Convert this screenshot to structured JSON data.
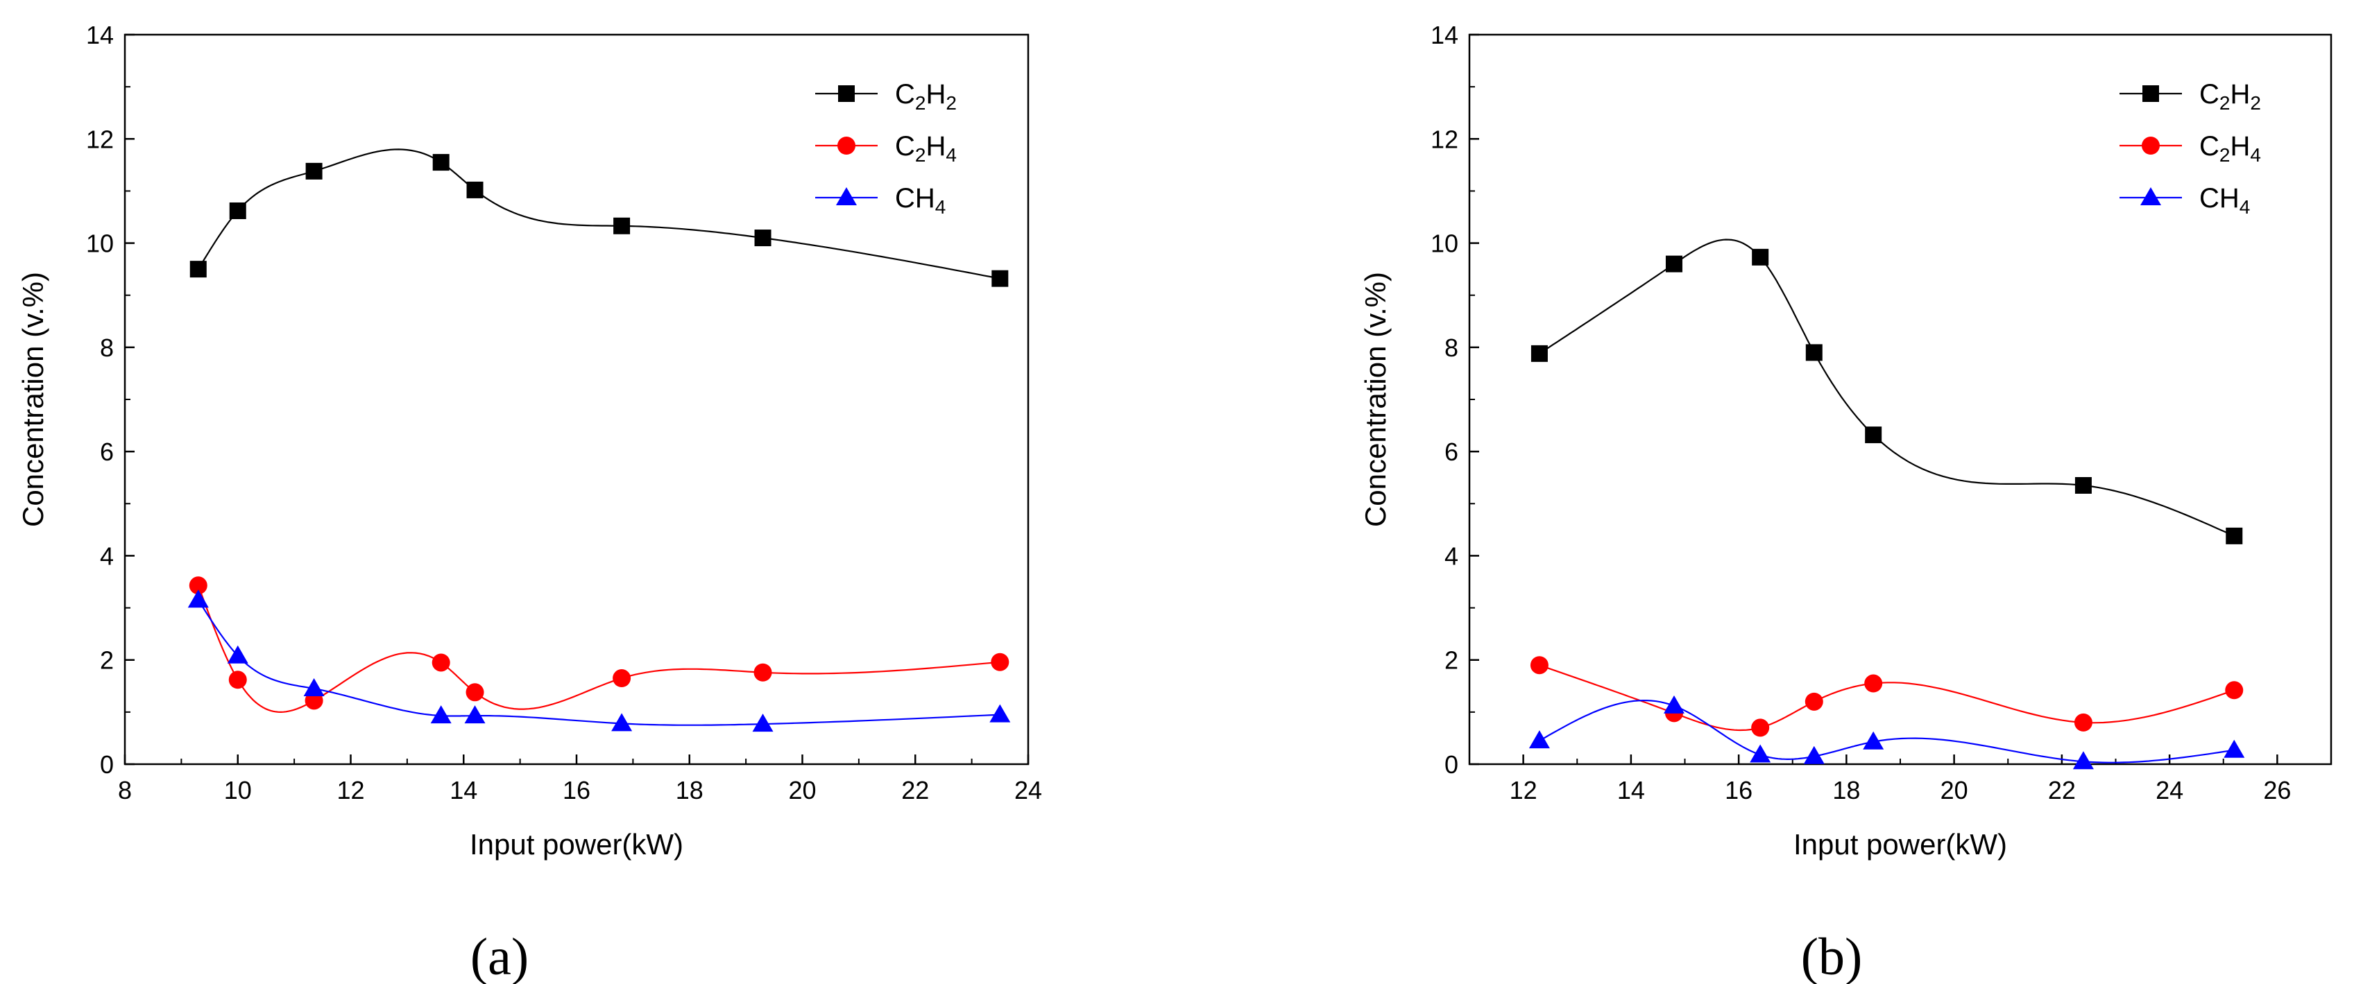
{
  "chart_data": [
    {
      "type": "line",
      "panel_label": "a",
      "xlabel": "Input power(kW)",
      "ylabel": "Concentration (v.%)",
      "xlim": [
        8,
        24
      ],
      "ylim": [
        0,
        14
      ],
      "xticks": [
        8,
        10,
        12,
        14,
        16,
        18,
        20,
        22,
        24
      ],
      "yticks": [
        0,
        2,
        4,
        6,
        8,
        10,
        12,
        14
      ],
      "legend_position": "top-right",
      "series": [
        {
          "name": "C2H2",
          "label_main": "C",
          "label_sub1": "2",
          "label_mid": "H",
          "label_sub2": "2",
          "color": "#000000",
          "marker": "square",
          "x": [
            9.3,
            10.0,
            11.35,
            13.6,
            14.2,
            16.8,
            19.3,
            23.5
          ],
          "y": [
            9.5,
            10.62,
            11.38,
            11.55,
            11.02,
            10.33,
            10.1,
            9.32
          ]
        },
        {
          "name": "C2H4",
          "label_main": "C",
          "label_sub1": "2",
          "label_mid": "H",
          "label_sub2": "4",
          "color": "#ff0000",
          "marker": "circle",
          "x": [
            9.3,
            10.0,
            11.35,
            13.6,
            14.2,
            16.8,
            19.3,
            23.5
          ],
          "y": [
            3.43,
            1.62,
            1.22,
            1.95,
            1.38,
            1.65,
            1.76,
            1.96
          ]
        },
        {
          "name": "CH4",
          "label_main": "CH",
          "label_sub1": "4",
          "label_mid": "",
          "label_sub2": "",
          "color": "#0000ff",
          "marker": "triangle",
          "x": [
            9.3,
            10.0,
            11.35,
            13.6,
            14.2,
            16.8,
            19.3,
            23.5
          ],
          "y": [
            3.15,
            2.08,
            1.45,
            0.93,
            0.93,
            0.78,
            0.77,
            0.95
          ]
        }
      ]
    },
    {
      "type": "line",
      "panel_label": "b",
      "xlabel": "Input power(kW)",
      "ylabel": "Concentration (v.%)",
      "xlim": [
        11,
        27
      ],
      "ylim": [
        0,
        14
      ],
      "xticks": [
        12,
        14,
        16,
        18,
        20,
        22,
        24,
        26
      ],
      "yticks": [
        0,
        2,
        4,
        6,
        8,
        10,
        12,
        14
      ],
      "legend_position": "top-right",
      "series": [
        {
          "name": "C2H2",
          "label_main": "C",
          "label_sub1": "2",
          "label_mid": "H",
          "label_sub2": "2",
          "color": "#000000",
          "marker": "square",
          "x": [
            12.3,
            14.8,
            16.4,
            17.4,
            18.5,
            22.4,
            25.2
          ],
          "y": [
            7.88,
            9.6,
            9.73,
            7.9,
            6.32,
            5.35,
            4.38
          ]
        },
        {
          "name": "C2H4",
          "label_main": "C",
          "label_sub1": "2",
          "label_mid": "H",
          "label_sub2": "4",
          "color": "#ff0000",
          "marker": "circle",
          "x": [
            12.3,
            14.8,
            16.4,
            17.4,
            18.5,
            22.4,
            25.2
          ],
          "y": [
            1.9,
            0.98,
            0.7,
            1.2,
            1.55,
            0.8,
            1.42
          ]
        },
        {
          "name": "CH4",
          "label_main": "CH",
          "label_sub1": "4",
          "label_mid": "",
          "label_sub2": "",
          "color": "#0000ff",
          "marker": "triangle",
          "x": [
            12.3,
            14.8,
            16.4,
            17.4,
            18.5,
            22.4,
            25.2
          ],
          "y": [
            0.45,
            1.12,
            0.18,
            0.15,
            0.43,
            0.05,
            0.27
          ]
        }
      ]
    }
  ],
  "captions": [
    "(a)",
    "(b)"
  ]
}
